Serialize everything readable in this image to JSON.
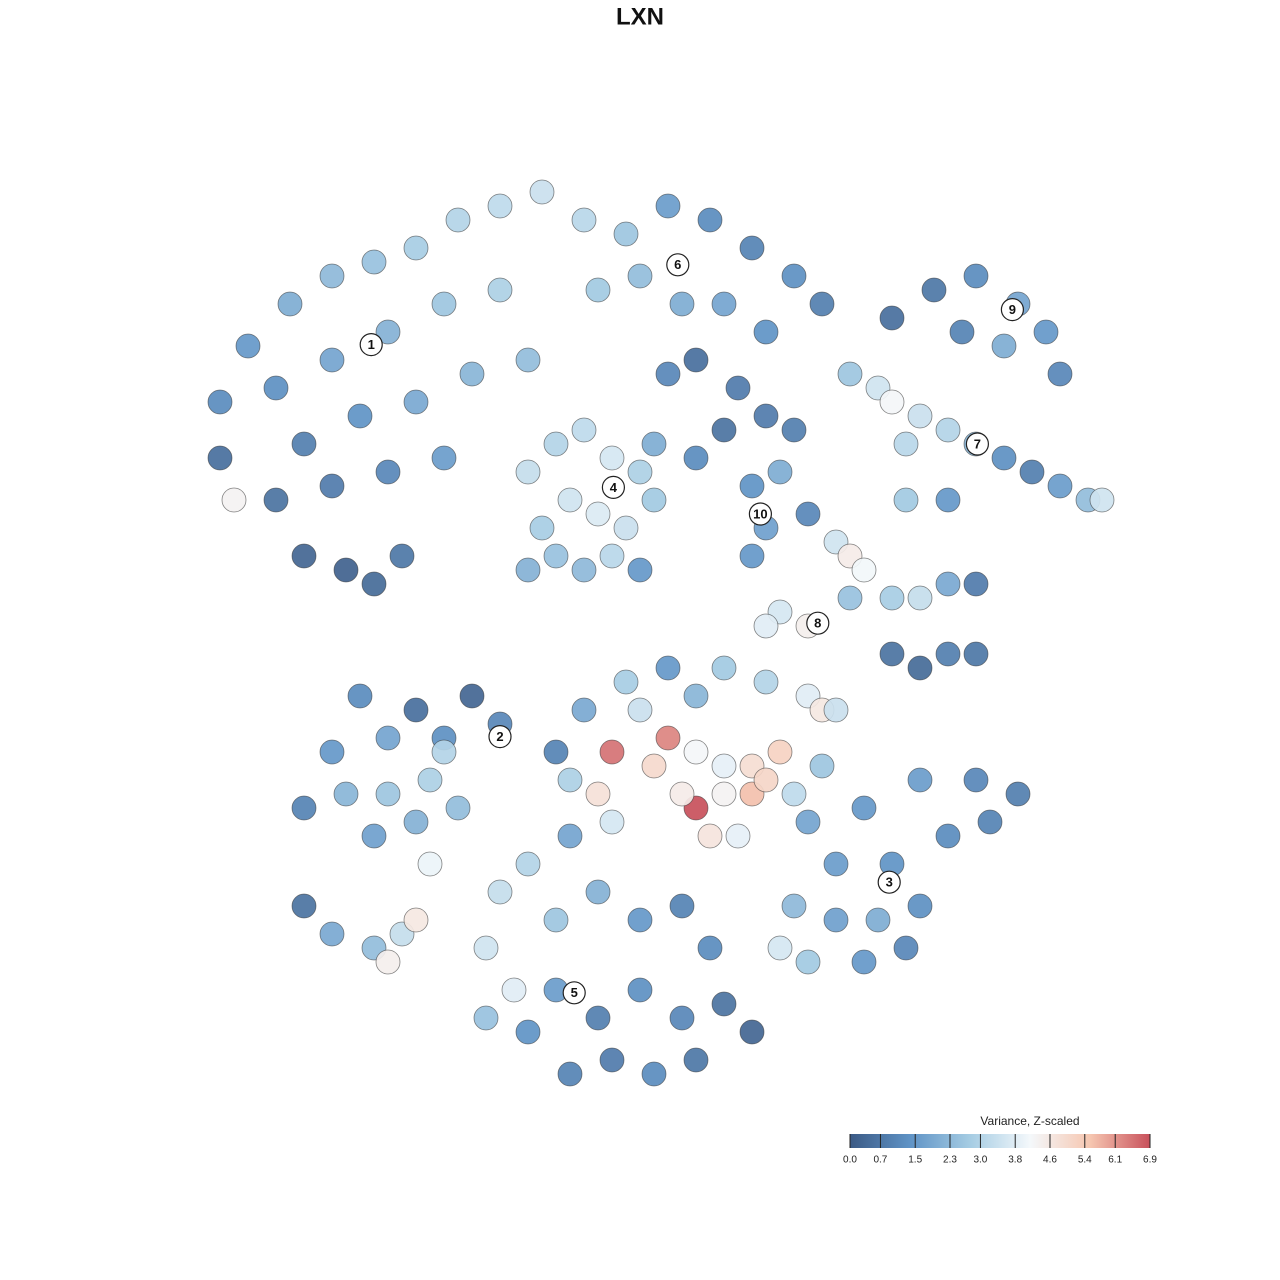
{
  "chart_data": {
    "type": "scatter",
    "title": "LXN",
    "xlim": [
      -45,
      45
    ],
    "ylim": [
      -45,
      45
    ],
    "x": [
      -30,
      -28,
      -25,
      -22,
      -19,
      -16,
      -13,
      -10,
      -7,
      -26,
      -22,
      -18,
      -14,
      -10,
      -24,
      -20,
      -16,
      -12,
      -8,
      -26,
      -22,
      -18,
      -14,
      -24,
      -21,
      -19,
      -17,
      -30,
      -29,
      -4,
      -1,
      2,
      5,
      8,
      11,
      13,
      0,
      3,
      6,
      9,
      -3,
      4,
      7,
      2,
      18,
      21,
      24,
      27,
      29,
      30,
      23,
      26,
      15,
      17,
      18,
      20,
      22,
      24,
      26,
      28,
      30,
      32,
      33,
      19,
      -8,
      -6,
      -4,
      -2,
      0,
      1,
      -1,
      -3,
      -5,
      -7,
      -6,
      -4,
      -2,
      -8,
      0,
      1,
      4,
      6,
      9,
      11,
      8,
      9,
      8,
      10,
      12,
      14,
      15,
      16,
      15,
      18,
      20,
      22,
      24,
      10,
      12,
      9,
      18,
      20,
      22,
      24,
      19,
      22,
      -20,
      -16,
      -12,
      -10,
      -14,
      -18,
      -22,
      -21,
      -18,
      -15,
      -13,
      -16,
      -19,
      -15,
      -24,
      -14,
      -24,
      -22,
      -19,
      -17,
      -18,
      -16,
      -1,
      2,
      4,
      6,
      9,
      12,
      13,
      14,
      -2,
      2,
      1,
      4,
      6,
      8,
      10,
      4,
      3,
      6,
      8,
      9,
      -3,
      -5,
      -2,
      5,
      7,
      -4,
      0,
      -6,
      11,
      13,
      -5,
      12,
      16,
      20,
      24,
      27,
      14,
      18,
      22,
      25,
      11,
      14,
      17,
      20,
      12,
      10,
      16,
      19,
      -10,
      -8,
      -11,
      -9,
      -6,
      -3,
      0,
      3,
      5,
      -6,
      -3,
      0,
      3,
      6,
      -8,
      -5,
      -2,
      1,
      4,
      8,
      -11
    ],
    "y": [
      17,
      21,
      24,
      26,
      27,
      28,
      30,
      31,
      32,
      18,
      20,
      22,
      24,
      25,
      14,
      16,
      17,
      19,
      20,
      10,
      11,
      12,
      13,
      6,
      5,
      4,
      6,
      13,
      10,
      30,
      29,
      31,
      30,
      28,
      26,
      24,
      26,
      24,
      24,
      22,
      25,
      20,
      18,
      19,
      23,
      25,
      26,
      24,
      22,
      19,
      22,
      21,
      19,
      18,
      17,
      16,
      15,
      14,
      13,
      12,
      11,
      10,
      10,
      14,
      12,
      14,
      15,
      13,
      12,
      10,
      8,
      9,
      10,
      8,
      6,
      5,
      6,
      5,
      5,
      14,
      13,
      15,
      16,
      15,
      11,
      8,
      6,
      12,
      9,
      7,
      6,
      5,
      3,
      3,
      3,
      4,
      4,
      2,
      1,
      1,
      -1,
      -2,
      -1,
      -1,
      10,
      10,
      -4,
      -5,
      -4,
      -6,
      -7,
      -7,
      -8,
      -11,
      -11,
      -10,
      -12,
      -13,
      -14,
      -16,
      -12,
      -8,
      -19,
      -21,
      -22,
      -21,
      -23,
      -20,
      -3,
      -2,
      -4,
      -2,
      -3,
      -4,
      -5,
      -5,
      -8,
      -7,
      -9,
      -8,
      -9,
      -9,
      -8,
      -12,
      -11,
      -11,
      -11,
      -10,
      -11,
      -10,
      -13,
      -14,
      -14,
      -5,
      -5,
      -8,
      -11,
      -9,
      -14,
      -13,
      -12,
      -10,
      -10,
      -11,
      -16,
      -16,
      -14,
      -13,
      -19,
      -20,
      -20,
      -19,
      -23,
      -22,
      -23,
      -22,
      -18,
      -16,
      -22,
      -25,
      -20,
      -18,
      -20,
      -19,
      -22,
      -25,
      -27,
      -25,
      -27,
      -26,
      -28,
      -31,
      -30,
      -31,
      -30,
      -28,
      -27
    ],
    "values": [
      1.2,
      1.5,
      2,
      2.3,
      2.5,
      2.8,
      3,
      3.2,
      3.4,
      1.3,
      1.8,
      2.1,
      2.6,
      2.9,
      0.9,
      1.4,
      1.9,
      2.2,
      2.4,
      0.6,
      0.8,
      1.1,
      1.6,
      0.3,
      0.2,
      0.4,
      0.7,
      0.5,
      4.3,
      3.1,
      2.6,
      1.6,
      1.2,
      1.0,
      1.3,
      0.9,
      2.4,
      2.0,
      1.8,
      1.4,
      2.7,
      0.5,
      0.8,
      1.1,
      0.5,
      0.7,
      1.2,
      1.8,
      1.5,
      1.1,
      1.0,
      2.0,
      2.6,
      3.5,
      4.2,
      3.4,
      3.0,
      2.2,
      1.3,
      0.9,
      1.6,
      2.4,
      3.5,
      3.1,
      3.3,
      3.0,
      3.2,
      3.6,
      2.9,
      2.7,
      3.4,
      3.7,
      3.5,
      2.8,
      2.5,
      2.3,
      3.1,
      2.1,
      1.5,
      2.0,
      1.2,
      0.6,
      0.8,
      0.9,
      1.4,
      1.7,
      1.5,
      2.0,
      1.1,
      3.5,
      4.5,
      4.1,
      2.5,
      2.8,
      3.3,
      1.9,
      0.8,
      3.6,
      4.4,
      3.8,
      0.6,
      0.4,
      0.9,
      0.7,
      2.7,
      1.5,
      1.2,
      0.5,
      0.3,
      1.1,
      1.3,
      1.8,
      1.5,
      2.2,
      2.6,
      2.9,
      2.4,
      2.1,
      1.7,
      4.0,
      1.0,
      3.0,
      0.6,
      1.9,
      2.4,
      3.3,
      4.4,
      4.6,
      2.8,
      1.5,
      2.2,
      2.7,
      3.0,
      3.8,
      4.6,
      3.4,
      6.5,
      6.3,
      5.0,
      4.2,
      3.9,
      4.9,
      5.2,
      6.9,
      4.5,
      4.3,
      5.6,
      5.1,
      4.8,
      2.9,
      3.6,
      4.7,
      3.9,
      1.9,
      3.4,
      1.0,
      3.2,
      2.6,
      1.8,
      1.8,
      1.5,
      1.6,
      1.1,
      0.9,
      1.6,
      1.4,
      1.2,
      1.0,
      2.3,
      1.7,
      2.0,
      1.3,
      2.7,
      3.6,
      1.5,
      1.1,
      3.3,
      3.0,
      3.5,
      3.8,
      2.6,
      2.1,
      1.5,
      1.0,
      1.2,
      1.6,
      0.9,
      1.3,
      1.1,
      0.6,
      1.4,
      1.0,
      0.8,
      1.2,
      0.7,
      0.3,
      2.5
    ],
    "annotations": [
      {
        "text": "1",
        "x": -19.2,
        "y": 21.1
      },
      {
        "text": "2",
        "x": -10,
        "y": -6.9
      },
      {
        "text": "3",
        "x": 17.8,
        "y": -17.3
      },
      {
        "text": "4",
        "x": -1.9,
        "y": 10.9
      },
      {
        "text": "5",
        "x": -4.7,
        "y": -25.2
      },
      {
        "text": "6",
        "x": 2.7,
        "y": 26.8
      },
      {
        "text": "7",
        "x": 24.1,
        "y": 14
      },
      {
        "text": "8",
        "x": 12.7,
        "y": 1.2
      },
      {
        "text": "9",
        "x": 26.6,
        "y": 23.6
      },
      {
        "text": "10",
        "x": 8.6,
        "y": 9
      }
    ],
    "colorbar": {
      "title": "Variance, Z-scaled",
      "lim": [
        0,
        6.9
      ],
      "ticks": [
        {
          "value": 0,
          "label": "0.0"
        },
        0.7,
        1.5,
        2.3,
        {
          "value": 3,
          "label": "3.0"
        },
        3.8,
        4.6,
        5.4,
        6.1,
        6.9
      ],
      "colors": [
        "#3b5a85",
        "#5f93c6",
        "#a5cce3",
        "#f4f8fb",
        "#f6c7b1",
        "#c8505b"
      ]
    }
  }
}
